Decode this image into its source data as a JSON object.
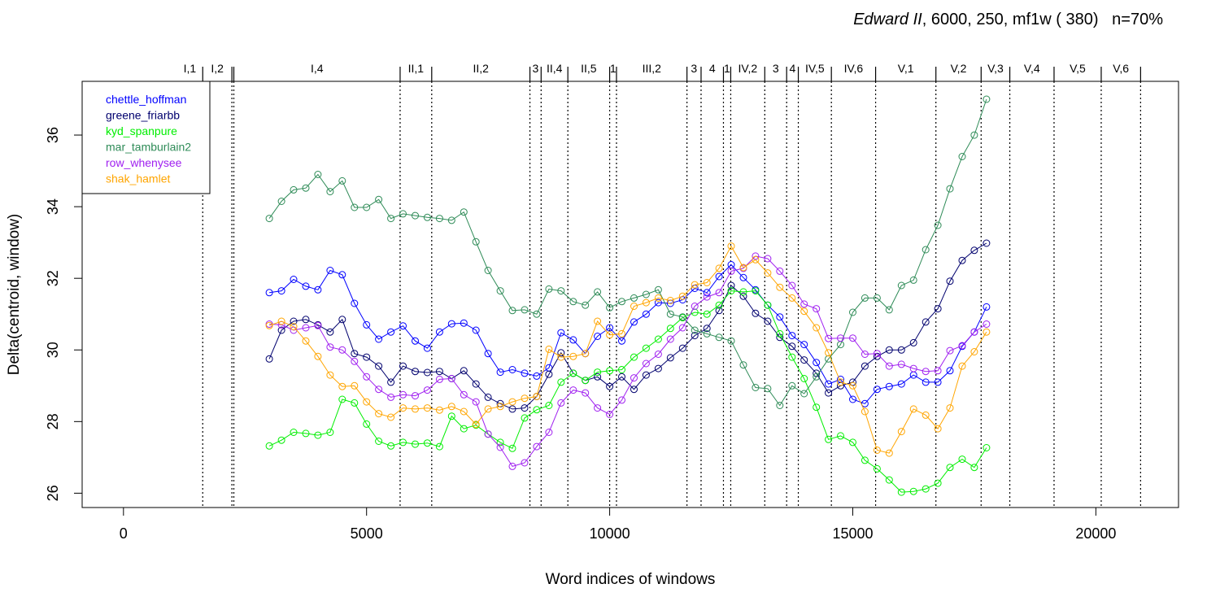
{
  "chart_data": {
    "type": "line",
    "title": {
      "italic": "Edward II",
      "rest": ", 6000, 250, mf1w ( 380)   n=70%"
    },
    "xlabel": "Word indices of windows",
    "ylabel": "Delta(centroid, window)",
    "xlim": [
      -850,
      21700
    ],
    "ylim": [
      25.6,
      37.5
    ],
    "xticks": [
      0,
      5000,
      10000,
      15000,
      20000
    ],
    "yticks": [
      26,
      28,
      30,
      32,
      34,
      36
    ],
    "grid": false,
    "legend_position": "top-left",
    "scenes": [
      {
        "label": "I,1",
        "boundary": 1630
      },
      {
        "label": "I,2",
        "boundary": 2230
      },
      {
        "label": "",
        "boundary": 2270
      },
      {
        "label": "I,4",
        "boundary": 5690
      },
      {
        "label": "II,1",
        "boundary": 6340
      },
      {
        "label": "II,2",
        "boundary": 8360
      },
      {
        "label": "3",
        "boundary": 8590
      },
      {
        "label": "II,4",
        "boundary": 9140
      },
      {
        "label": "II,5",
        "boundary": 10000
      },
      {
        "label": "1",
        "boundary": 10140
      },
      {
        "label": "III,2",
        "boundary": 11590
      },
      {
        "label": "3",
        "boundary": 11880
      },
      {
        "label": "4",
        "boundary": 12340
      },
      {
        "label": "1",
        "boundary": 12490
      },
      {
        "label": "IV,2",
        "boundary": 13190
      },
      {
        "label": "3",
        "boundary": 13640
      },
      {
        "label": "4",
        "boundary": 13880
      },
      {
        "label": "IV,5",
        "boundary": 14560
      },
      {
        "label": "IV,6",
        "boundary": 15470
      },
      {
        "label": "V,1",
        "boundary": 16710
      },
      {
        "label": "V,2",
        "boundary": 17640
      },
      {
        "label": "V,3",
        "boundary": 18230
      },
      {
        "label": "V,4",
        "boundary": 19140
      },
      {
        "label": "V,5",
        "boundary": 20110
      },
      {
        "label": "V,6",
        "boundary": 20920
      }
    ],
    "x": [
      3000,
      3250,
      3500,
      3750,
      4000,
      4250,
      4500,
      4750,
      5000,
      5250,
      5500,
      5750,
      6000,
      6250,
      6500,
      6750,
      7000,
      7250,
      7500,
      7750,
      8000,
      8250,
      8500,
      8750,
      9000,
      9250,
      9500,
      9750,
      10000,
      10250,
      10500,
      10750,
      11000,
      11250,
      11500,
      11750,
      12000,
      12250,
      12500,
      12750,
      13000,
      13250,
      13500,
      13750,
      14000,
      14250,
      14500,
      14750,
      15000,
      15250,
      15500,
      15750,
      16000,
      16250,
      16500,
      16750,
      17000,
      17250,
      17500,
      17750
    ],
    "series": [
      {
        "name": "chettle_hoffman",
        "color": "#0000ff",
        "values": [
          31.6,
          31.65,
          31.97,
          31.78,
          31.68,
          32.22,
          32.1,
          31.3,
          30.7,
          30.3,
          30.5,
          30.67,
          30.25,
          30.05,
          30.5,
          30.73,
          30.75,
          30.55,
          29.9,
          29.38,
          29.45,
          29.35,
          29.27,
          29.5,
          30.48,
          30.28,
          29.9,
          30.38,
          30.62,
          30.25,
          30.78,
          31.0,
          31.32,
          31.3,
          31.4,
          31.72,
          31.6,
          32.05,
          32.38,
          32.02,
          31.68,
          31.25,
          30.92,
          30.4,
          30.15,
          29.65,
          29.05,
          29.18,
          28.62,
          28.5,
          28.9,
          28.98,
          29.05,
          29.3,
          29.1,
          29.1,
          29.42,
          30.1,
          30.5,
          31.2
        ]
      },
      {
        "name": "greene_friarbb",
        "color": "#00006e",
        "values": [
          29.75,
          30.55,
          30.8,
          30.85,
          30.7,
          30.5,
          30.85,
          29.9,
          29.8,
          29.55,
          29.1,
          29.55,
          29.4,
          29.37,
          29.4,
          29.2,
          29.42,
          29.05,
          28.68,
          28.5,
          28.35,
          28.38,
          28.7,
          29.32,
          29.92,
          29.35,
          29.15,
          29.25,
          28.98,
          29.25,
          28.9,
          29.3,
          29.48,
          29.78,
          30.05,
          30.4,
          30.6,
          31.1,
          31.8,
          31.5,
          31.02,
          30.8,
          30.35,
          30.1,
          29.72,
          29.35,
          28.8,
          29.0,
          29.1,
          29.55,
          29.82,
          30.0,
          30.0,
          30.2,
          30.78,
          31.15,
          31.92,
          32.5,
          32.78,
          32.98
        ]
      },
      {
        "name": "kyd_spanpure",
        "color": "#00ee00",
        "values": [
          27.32,
          27.48,
          27.7,
          27.67,
          27.62,
          27.7,
          28.62,
          28.52,
          27.93,
          27.45,
          27.32,
          27.42,
          27.37,
          27.4,
          27.3,
          28.15,
          27.8,
          27.9,
          27.65,
          27.42,
          27.25,
          28.1,
          28.33,
          28.45,
          29.1,
          29.35,
          29.15,
          29.38,
          29.42,
          29.45,
          29.8,
          30.05,
          30.3,
          30.6,
          30.9,
          31.05,
          31.0,
          31.25,
          31.65,
          31.62,
          31.65,
          31.25,
          30.45,
          29.8,
          29.2,
          28.4,
          27.5,
          27.6,
          27.42,
          26.92,
          26.68,
          26.37,
          26.03,
          26.05,
          26.12,
          26.28,
          26.72,
          26.95,
          26.72,
          27.27
        ]
      },
      {
        "name": "mar_tamburlain2",
        "color": "#2e8b57",
        "values": [
          33.67,
          34.15,
          34.47,
          34.52,
          34.9,
          34.42,
          34.72,
          33.98,
          33.98,
          34.2,
          33.67,
          33.8,
          33.75,
          33.7,
          33.67,
          33.62,
          33.85,
          33.02,
          32.22,
          31.65,
          31.1,
          31.12,
          31.0,
          31.7,
          31.65,
          31.35,
          31.25,
          31.62,
          31.18,
          31.35,
          31.45,
          31.55,
          31.68,
          31.0,
          30.92,
          30.55,
          30.45,
          30.35,
          30.25,
          29.58,
          28.95,
          28.92,
          28.45,
          29.0,
          28.78,
          29.25,
          29.75,
          30.15,
          31.05,
          31.45,
          31.45,
          31.12,
          31.8,
          31.95,
          32.8,
          33.48,
          34.5,
          35.4,
          36.0,
          37.0
        ]
      },
      {
        "name": "row_whenysee",
        "color": "#a020f0",
        "values": [
          30.72,
          30.7,
          30.55,
          30.62,
          30.68,
          30.08,
          30.0,
          29.68,
          29.25,
          28.9,
          28.68,
          28.75,
          28.72,
          28.88,
          29.18,
          29.2,
          28.75,
          28.55,
          27.65,
          27.28,
          26.75,
          26.85,
          27.3,
          27.7,
          28.52,
          28.88,
          28.8,
          28.38,
          28.2,
          28.6,
          29.22,
          29.62,
          29.88,
          30.3,
          30.62,
          31.22,
          31.48,
          31.6,
          32.2,
          32.28,
          32.62,
          32.55,
          32.2,
          31.8,
          31.28,
          31.15,
          30.32,
          30.33,
          30.33,
          29.88,
          29.9,
          29.55,
          29.6,
          29.48,
          29.4,
          29.42,
          29.98,
          30.12,
          30.5,
          30.72
        ]
      },
      {
        "name": "shak_hamlet",
        "color": "#ffa500",
        "values": [
          30.68,
          30.8,
          30.65,
          30.25,
          29.82,
          29.3,
          28.98,
          29.0,
          28.55,
          28.22,
          28.12,
          28.38,
          28.35,
          28.38,
          28.32,
          28.42,
          28.28,
          27.92,
          28.35,
          28.42,
          28.55,
          28.65,
          28.7,
          30.02,
          29.8,
          29.82,
          29.9,
          30.8,
          30.42,
          30.45,
          31.22,
          31.32,
          31.45,
          31.38,
          31.5,
          31.82,
          31.88,
          32.28,
          32.9,
          32.3,
          32.52,
          32.15,
          31.75,
          31.45,
          31.08,
          30.62,
          29.92,
          29.1,
          29.0,
          28.28,
          27.2,
          27.12,
          27.72,
          28.35,
          28.18,
          27.8,
          28.38,
          29.55,
          29.95,
          30.5
        ]
      }
    ]
  }
}
